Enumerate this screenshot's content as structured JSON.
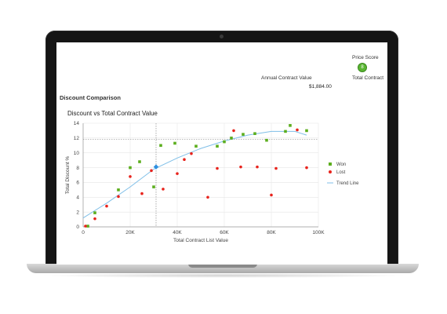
{
  "header": {
    "price_score_label": "Price Score",
    "price_score_value": "8",
    "total_contract_label": "Total Contract",
    "annual_contract_label": "Annual Contract Value",
    "annual_contract_value": "$1,884.00"
  },
  "section": {
    "title": "Discount Comparison"
  },
  "colors": {
    "won": "#5cae1e",
    "lost": "#e8231c",
    "trend": "#7fbfe8",
    "highlight": "#2f8fe0",
    "score_badge": "#5ab532"
  },
  "chart_data": {
    "type": "scatter",
    "title": "Discount vs Total Contract Value",
    "xlabel": "Total Contract List Value",
    "ylabel": "Total Discount %",
    "xlim": [
      0,
      100000
    ],
    "ylim": [
      0,
      14
    ],
    "x_ticks": [
      0,
      20000,
      40000,
      60000,
      80000,
      100000
    ],
    "x_tick_labels": [
      "0",
      "20K",
      "40K",
      "60K",
      "80K",
      "100K"
    ],
    "y_ticks": [
      0,
      2,
      4,
      6,
      8,
      10,
      12,
      14
    ],
    "y_tick_labels": [
      "0",
      "2",
      "4",
      "6",
      "8",
      "10",
      "12",
      "14"
    ],
    "grid": true,
    "legend_position": "right",
    "series": [
      {
        "name": "Won",
        "marker": "square",
        "points": [
          [
            2000,
            0.1
          ],
          [
            5000,
            1.9
          ],
          [
            15000,
            5.0
          ],
          [
            20000,
            8.0
          ],
          [
            24000,
            8.8
          ],
          [
            30000,
            5.4
          ],
          [
            33000,
            11.0
          ],
          [
            39000,
            11.3
          ],
          [
            48000,
            10.9
          ],
          [
            57000,
            10.9
          ],
          [
            60000,
            11.5
          ],
          [
            63000,
            12.0
          ],
          [
            68000,
            12.5
          ],
          [
            73000,
            12.6
          ],
          [
            78000,
            11.7
          ],
          [
            86000,
            12.9
          ],
          [
            88000,
            13.7
          ],
          [
            95000,
            13.0
          ]
        ]
      },
      {
        "name": "Lost",
        "marker": "circle",
        "points": [
          [
            1000,
            0.1
          ],
          [
            5000,
            1.1
          ],
          [
            10000,
            2.8
          ],
          [
            15000,
            4.1
          ],
          [
            20000,
            6.8
          ],
          [
            25000,
            4.5
          ],
          [
            29000,
            7.6
          ],
          [
            34000,
            5.1
          ],
          [
            40000,
            7.2
          ],
          [
            43000,
            9.1
          ],
          [
            46000,
            9.9
          ],
          [
            53000,
            4.0
          ],
          [
            57000,
            7.9
          ],
          [
            64000,
            13.0
          ],
          [
            67000,
            8.1
          ],
          [
            74000,
            8.1
          ],
          [
            80000,
            4.3
          ],
          [
            82000,
            7.9
          ],
          [
            91000,
            13.1
          ],
          [
            95000,
            8.0
          ]
        ]
      }
    ],
    "trend_line": {
      "name": "Trend Line",
      "points": [
        [
          0,
          1.2
        ],
        [
          10000,
          3.2
        ],
        [
          20000,
          5.4
        ],
        [
          30000,
          7.8
        ],
        [
          40000,
          9.3
        ],
        [
          50000,
          10.6
        ],
        [
          60000,
          11.6
        ],
        [
          70000,
          12.4
        ],
        [
          80000,
          12.9
        ],
        [
          90000,
          12.9
        ],
        [
          95000,
          12.4
        ]
      ]
    },
    "highlight_point": {
      "x": 31000,
      "y": 8.1,
      "crosshair_y": 11.8
    }
  }
}
